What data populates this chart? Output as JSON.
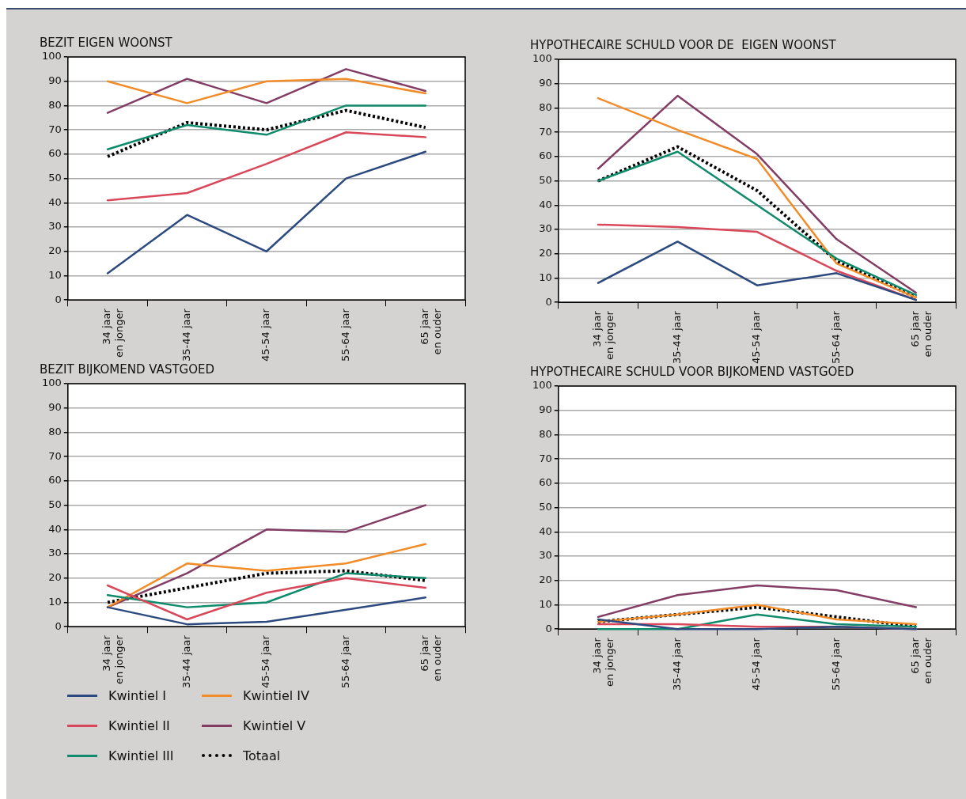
{
  "chart_data": [
    {
      "type": "line",
      "title": "BEZIT EIGEN WOONST",
      "categories": [
        "34 jaar\nen jonger",
        "35-44 jaar",
        "45-54 jaar",
        "55-64 jaar",
        "65 jaar\nen ouder"
      ],
      "ylim": [
        0,
        100
      ],
      "yticks": [
        0,
        10,
        20,
        30,
        40,
        50,
        60,
        70,
        80,
        90,
        100
      ],
      "grid": "y",
      "legend": "bottom",
      "marker": "none",
      "series": [
        {
          "name": "Kwintiel I",
          "color": "#2c4a7f",
          "values": [
            11,
            35,
            20,
            50,
            61
          ]
        },
        {
          "name": "Kwintiel II",
          "color": "#d9485a",
          "values": [
            41,
            44,
            56,
            69,
            67
          ]
        },
        {
          "name": "Kwintiel III",
          "color": "#0f8a6a",
          "values": [
            62,
            72,
            68,
            80,
            80
          ]
        },
        {
          "name": "Kwintiel IV",
          "color": "#f28c28",
          "values": [
            90,
            81,
            90,
            91,
            85
          ]
        },
        {
          "name": "Kwintiel V",
          "color": "#833c64",
          "values": [
            77,
            91,
            81,
            95,
            86
          ]
        },
        {
          "name": "Totaal",
          "color": "#000000",
          "line_style": "dotted",
          "values": [
            59,
            73,
            70,
            78,
            71
          ]
        }
      ]
    },
    {
      "type": "line",
      "title": "HYPOTHECAIRE SCHULD VOOR DE  EIGEN WOONST",
      "categories": [
        "34 jaar\nen jonger",
        "35-44 jaar",
        "45-54 jaar",
        "55-64 jaar",
        "65 jaar\nen ouder"
      ],
      "ylim": [
        0,
        100
      ],
      "yticks": [
        0,
        10,
        20,
        30,
        40,
        50,
        60,
        70,
        80,
        90,
        100
      ],
      "grid": "y",
      "marker": "none",
      "series": [
        {
          "color": "#2c4a7f",
          "values": [
            8,
            25,
            7,
            12,
            1
          ]
        },
        {
          "color": "#d9485a",
          "values": [
            32,
            31,
            29,
            13,
            1
          ]
        },
        {
          "color": "#0f8a6a",
          "values": [
            50,
            62,
            40,
            18,
            3
          ]
        },
        {
          "color": "#f28c28",
          "values": [
            84,
            71,
            59,
            16,
            2
          ]
        },
        {
          "color": "#833c64",
          "values": [
            55,
            85,
            61,
            26,
            4
          ]
        },
        {
          "color": "#000000",
          "line_style": "dotted",
          "values": [
            50,
            64,
            46,
            17,
            2
          ]
        }
      ]
    },
    {
      "type": "line",
      "title": "BEZIT BIJKOMEND VASTGOED",
      "categories": [
        "34 jaar\nen jonger",
        "35-44 jaar",
        "45-54 jaar",
        "55-64 jaar",
        "65 jaar\nen ouder"
      ],
      "ylim": [
        0,
        100
      ],
      "yticks": [
        0,
        10,
        20,
        30,
        40,
        50,
        60,
        70,
        80,
        90,
        100
      ],
      "grid": "y",
      "marker": "none",
      "series": [
        {
          "color": "#2c4a7f",
          "values": [
            8,
            1,
            2,
            7,
            12
          ]
        },
        {
          "color": "#d9485a",
          "values": [
            17,
            3,
            14,
            20,
            16
          ]
        },
        {
          "color": "#0f8a6a",
          "values": [
            13,
            8,
            10,
            22,
            20
          ]
        },
        {
          "color": "#f28c28",
          "values": [
            8,
            26,
            23,
            26,
            34
          ]
        },
        {
          "color": "#833c64",
          "values": [
            8,
            22,
            40,
            39,
            50
          ]
        },
        {
          "color": "#000000",
          "line_style": "dotted",
          "values": [
            10,
            16,
            22,
            23,
            19
          ]
        }
      ]
    },
    {
      "type": "line",
      "title": "HYPOTHECAIRE SCHULD VOOR BIJKOMEND VASTGOED",
      "categories": [
        "34 jaar\nen jonger",
        "35-44 jaar",
        "45-54 jaar",
        "55-64 jaar",
        "65 jaar\nen ouder"
      ],
      "ylim": [
        0,
        100
      ],
      "yticks": [
        0,
        10,
        20,
        30,
        40,
        50,
        60,
        70,
        80,
        90,
        100
      ],
      "grid": "y",
      "marker": "none",
      "series": [
        {
          "color": "#2c4a7f",
          "values": [
            4,
            0,
            0,
            1,
            0
          ]
        },
        {
          "color": "#d9485a",
          "values": [
            2,
            2,
            1,
            1,
            0
          ]
        },
        {
          "color": "#0f8a6a",
          "values": [
            0,
            0,
            6,
            2,
            1
          ]
        },
        {
          "color": "#f28c28",
          "values": [
            3,
            6,
            10,
            4,
            2
          ]
        },
        {
          "color": "#833c64",
          "values": [
            5,
            14,
            18,
            16,
            9
          ]
        },
        {
          "color": "#000000",
          "line_style": "dotted",
          "values": [
            3,
            6,
            9,
            5,
            1
          ]
        }
      ]
    }
  ]
}
